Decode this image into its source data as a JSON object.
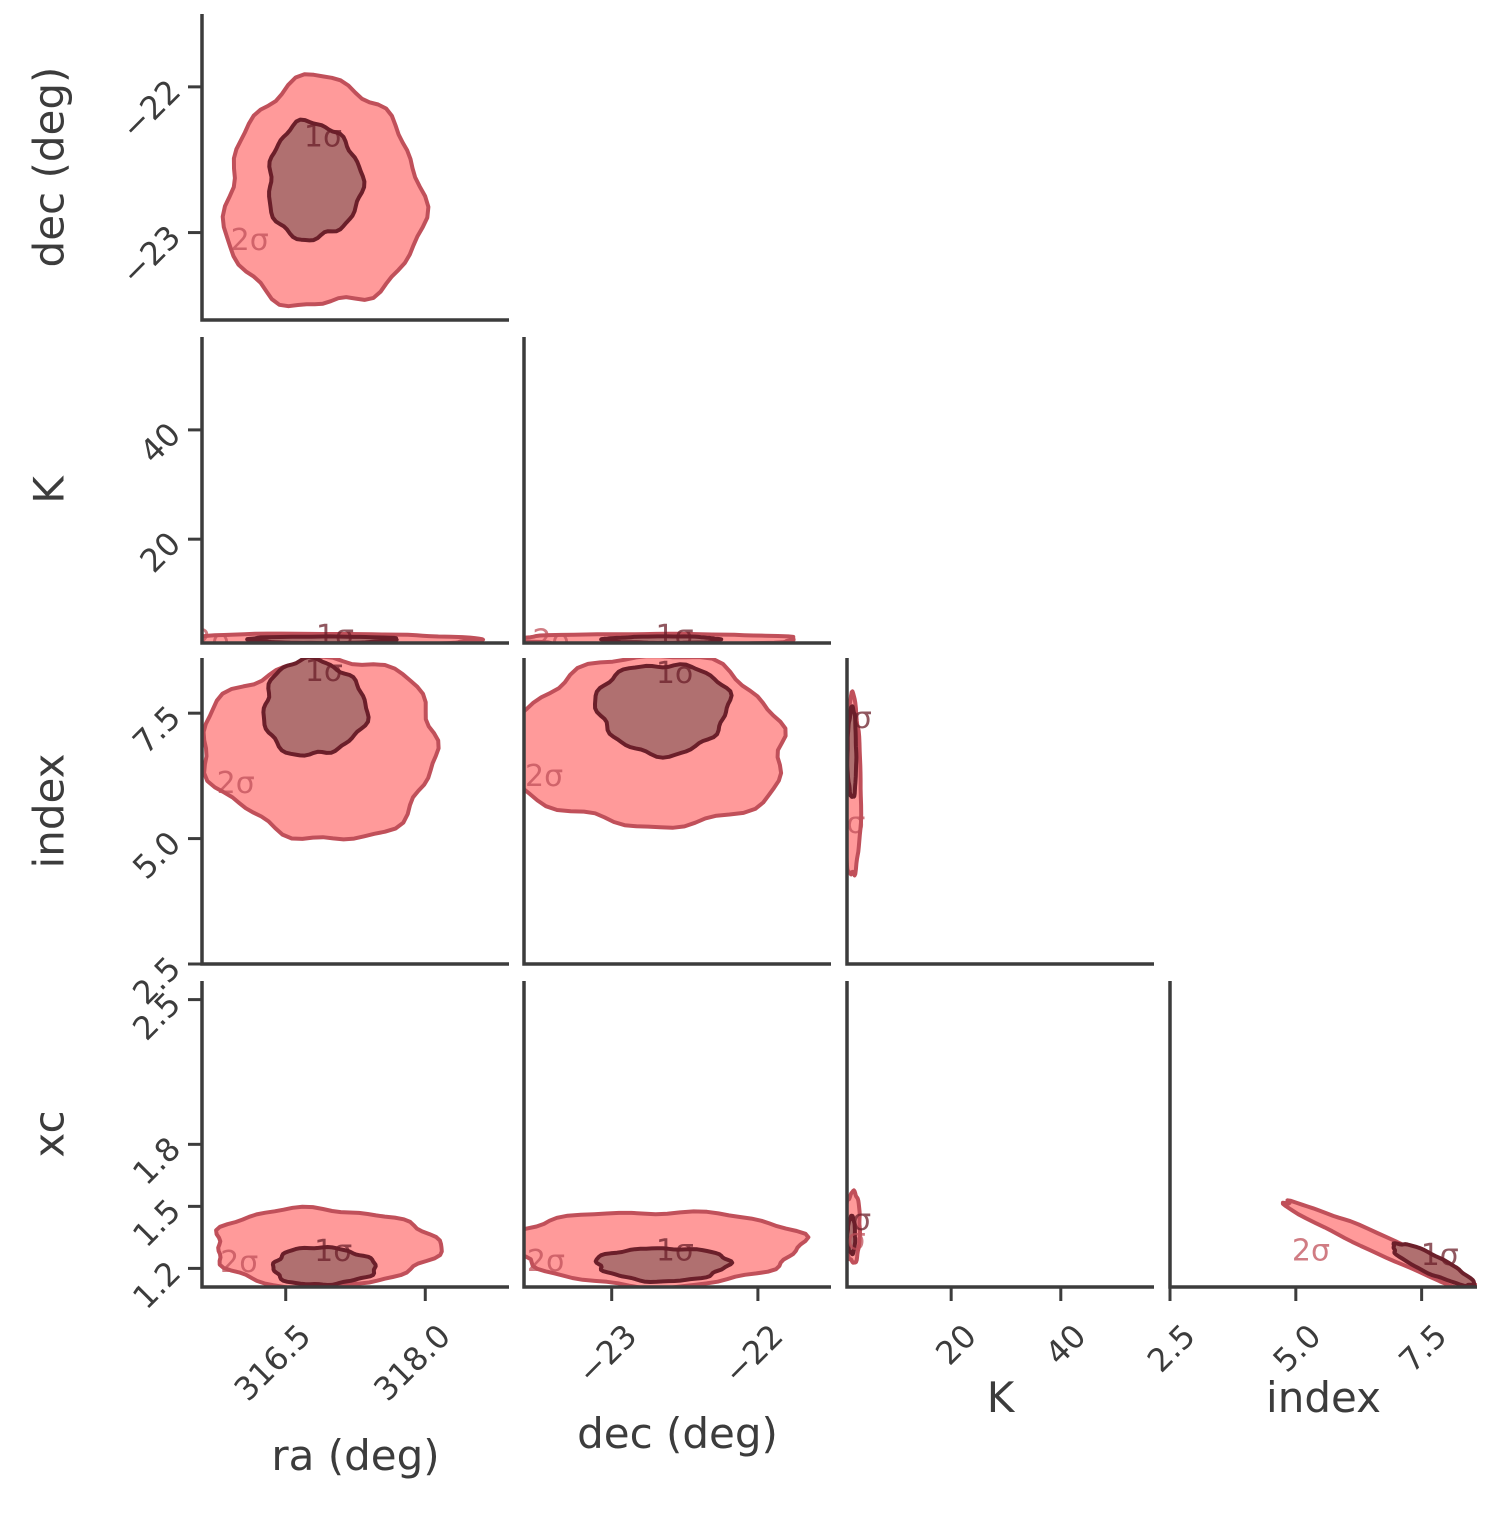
{
  "colors": {
    "outer_fill": "#ff9a9a",
    "inner_fill": "#b07070",
    "outer_line": "#c0505a",
    "inner_line": "#6b1f2a",
    "axis": "#3c3c3c"
  },
  "chart_data": {
    "type": "corner",
    "parameters": [
      {
        "key": "ra",
        "label": "ra (deg)",
        "range": [
          315.6,
          318.9
        ],
        "ticks": [
          316.5,
          318.0
        ],
        "tick_labels": [
          "316.5",
          "318.0"
        ]
      },
      {
        "key": "dec",
        "label": "dec (deg)",
        "range": [
          -23.6,
          -21.5
        ],
        "ticks": [
          -23,
          -22
        ],
        "tick_labels": [
          "−23",
          "−22"
        ]
      },
      {
        "key": "K",
        "label": "K",
        "range": [
          1,
          57
        ],
        "ticks": [
          20,
          40
        ],
        "tick_labels": [
          "20",
          "40"
        ]
      },
      {
        "key": "index",
        "label": "index",
        "range": [
          2.5,
          8.6
        ],
        "ticks": [
          2.5,
          5.0,
          7.5
        ],
        "tick_labels": [
          "2.5",
          "5.0",
          "7.5"
        ]
      },
      {
        "key": "xc",
        "label": "xc",
        "range": [
          1.11,
          2.59
        ],
        "ticks": [
          1.2,
          1.5,
          1.8,
          2.5
        ],
        "tick_labels": [
          "1.2",
          "1.5",
          "1.8",
          "2.5"
        ]
      }
    ],
    "x_params": [
      "ra",
      "dec",
      "K",
      "index"
    ],
    "y_params": [
      "dec",
      "K",
      "index",
      "xc"
    ],
    "contour_labels": {
      "inner": "1σ",
      "outer": "2σ"
    },
    "panels": [
      {
        "x": "ra",
        "y": "dec",
        "sigma1": {
          "center": [
            316.8,
            -22.65
          ],
          "half": [
            0.5,
            0.4
          ],
          "lean": 0
        },
        "sigma2": {
          "center": [
            316.9,
            -22.75
          ],
          "half": [
            1.05,
            0.78
          ],
          "lean": 0
        }
      },
      {
        "x": "ra",
        "y": "K",
        "sigma1": {
          "center": [
            316.9,
            1.6
          ],
          "half": [
            0.8,
            0.6
          ],
          "lean": 0
        },
        "sigma2": {
          "center": [
            316.9,
            1.6
          ],
          "half": [
            1.6,
            1.1
          ],
          "lean": 0
        }
      },
      {
        "x": "dec",
        "y": "K",
        "sigma1": {
          "center": [
            -22.65,
            1.6
          ],
          "half": [
            0.4,
            0.6
          ],
          "lean": 0
        },
        "sigma2": {
          "center": [
            -22.7,
            1.6
          ],
          "half": [
            0.95,
            1.1
          ],
          "lean": 0
        }
      },
      {
        "x": "ra",
        "y": "index",
        "sigma1": {
          "center": [
            316.8,
            7.6
          ],
          "half": [
            0.55,
            0.95
          ],
          "lean": 0
        },
        "sigma2": {
          "center": [
            316.9,
            6.8
          ],
          "half": [
            1.25,
            1.8
          ],
          "lean": 0
        }
      },
      {
        "x": "dec",
        "y": "index",
        "sigma1": {
          "center": [
            -22.65,
            7.6
          ],
          "half": [
            0.45,
            0.9
          ],
          "lean": 0
        },
        "sigma2": {
          "center": [
            -22.75,
            6.9
          ],
          "half": [
            0.95,
            1.7
          ],
          "lean": 0
        }
      },
      {
        "x": "K",
        "y": "index",
        "sigma1": {
          "center": [
            1.9,
            6.7
          ],
          "half": [
            0.8,
            0.9
          ],
          "lean": 0
        },
        "sigma2": {
          "center": [
            2.0,
            6.0
          ],
          "half": [
            1.5,
            1.8
          ],
          "lean": 0
        }
      },
      {
        "x": "ra",
        "y": "xc",
        "sigma1": {
          "center": [
            316.9,
            1.21
          ],
          "half": [
            0.55,
            0.09
          ],
          "lean": 0
        },
        "sigma2": {
          "center": [
            316.9,
            1.3
          ],
          "half": [
            1.2,
            0.19
          ],
          "lean": 0
        }
      },
      {
        "x": "dec",
        "y": "xc",
        "sigma1": {
          "center": [
            -22.65,
            1.22
          ],
          "half": [
            0.45,
            0.08
          ],
          "lean": 0
        },
        "sigma2": {
          "center": [
            -22.7,
            1.3
          ],
          "half": [
            1.0,
            0.18
          ],
          "lean": 0
        }
      },
      {
        "x": "K",
        "y": "xc",
        "sigma1": {
          "center": [
            1.8,
            1.36
          ],
          "half": [
            0.7,
            0.09
          ],
          "lean": 0
        },
        "sigma2": {
          "center": [
            2.0,
            1.4
          ],
          "half": [
            1.4,
            0.17
          ],
          "lean": 0
        }
      },
      {
        "x": "index",
        "y": "xc",
        "sigma1": {
          "center": [
            7.7,
            1.22
          ],
          "half": [
            0.8,
            0.05
          ],
          "lean": -0.11
        },
        "sigma2": {
          "center": [
            6.8,
            1.3
          ],
          "half": [
            2.0,
            0.05
          ],
          "lean": -0.11
        }
      }
    ]
  }
}
